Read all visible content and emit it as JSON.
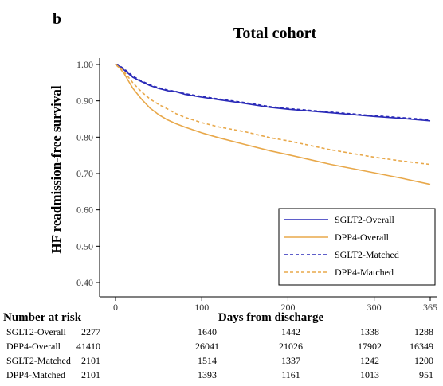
{
  "panel_label": "b",
  "chart_data": {
    "type": "line",
    "title": "Total cohort",
    "xlabel": "Days from discharge",
    "ylabel": "HF readmission-free survival",
    "xlim": [
      0,
      365
    ],
    "ylim": [
      0.4,
      1.0
    ],
    "x_ticks": [
      0,
      100,
      200,
      300,
      365
    ],
    "x_tick_labels": [
      "0",
      "100",
      "200",
      "300",
      "365"
    ],
    "y_ticks": [
      0.4,
      0.5,
      0.6,
      0.7,
      0.8,
      0.9,
      1.0
    ],
    "y_tick_labels": [
      "0.40",
      "0.50",
      "0.60",
      "0.70",
      "0.80",
      "0.90",
      "1.00"
    ],
    "grid": false,
    "legend_position": "bottom-right",
    "colors": {
      "sglt2": "#2a2ab8",
      "dpp4": "#e8a84a",
      "axis": "#000000",
      "tick_text": "#333333"
    },
    "series": [
      {
        "name": "SGLT2-Overall",
        "color": "#2a2ab8",
        "dash": "solid",
        "x": [
          0,
          5,
          10,
          15,
          20,
          30,
          40,
          50,
          60,
          70,
          80,
          100,
          120,
          150,
          180,
          200,
          250,
          300,
          330,
          365
        ],
        "y": [
          1.0,
          0.995,
          0.985,
          0.975,
          0.965,
          0.953,
          0.942,
          0.934,
          0.928,
          0.925,
          0.918,
          0.91,
          0.903,
          0.893,
          0.882,
          0.877,
          0.867,
          0.857,
          0.852,
          0.845
        ]
      },
      {
        "name": "DPP4-Overall",
        "color": "#e8a84a",
        "dash": "solid",
        "x": [
          0,
          5,
          10,
          15,
          20,
          30,
          40,
          50,
          60,
          70,
          80,
          100,
          120,
          150,
          180,
          200,
          250,
          300,
          330,
          365
        ],
        "y": [
          1.0,
          0.99,
          0.975,
          0.955,
          0.935,
          0.905,
          0.88,
          0.862,
          0.848,
          0.837,
          0.828,
          0.812,
          0.798,
          0.78,
          0.762,
          0.752,
          0.725,
          0.702,
          0.688,
          0.67
        ]
      },
      {
        "name": "SGLT2-Matched",
        "color": "#2a2ab8",
        "dash": "dashed",
        "x": [
          0,
          5,
          10,
          15,
          20,
          30,
          40,
          50,
          60,
          70,
          80,
          100,
          120,
          150,
          180,
          200,
          250,
          300,
          330,
          365
        ],
        "y": [
          1.0,
          0.996,
          0.988,
          0.978,
          0.968,
          0.955,
          0.944,
          0.936,
          0.93,
          0.926,
          0.92,
          0.912,
          0.905,
          0.895,
          0.884,
          0.879,
          0.869,
          0.859,
          0.854,
          0.848
        ]
      },
      {
        "name": "DPP4-Matched",
        "color": "#e8a84a",
        "dash": "dashed",
        "x": [
          0,
          5,
          10,
          15,
          20,
          30,
          40,
          50,
          60,
          70,
          80,
          100,
          120,
          150,
          180,
          200,
          250,
          300,
          330,
          365
        ],
        "y": [
          1.0,
          0.992,
          0.98,
          0.965,
          0.95,
          0.925,
          0.905,
          0.89,
          0.878,
          0.865,
          0.855,
          0.84,
          0.828,
          0.815,
          0.798,
          0.79,
          0.765,
          0.745,
          0.735,
          0.725
        ]
      }
    ],
    "risk_table": {
      "header": "Number at risk",
      "rows": [
        {
          "label": "SGLT2-Overall",
          "values": [
            "2277",
            "1640",
            "1442",
            "1338",
            "1288"
          ]
        },
        {
          "label": "DPP4-Overall",
          "values": [
            "41410",
            "26041",
            "21026",
            "17902",
            "16349"
          ]
        },
        {
          "label": "SGLT2-Matched",
          "values": [
            "2101",
            "1514",
            "1337",
            "1242",
            "1200"
          ]
        },
        {
          "label": "DPP4-Matched",
          "values": [
            "2101",
            "1393",
            "1161",
            "1013",
            "951"
          ]
        }
      ]
    }
  }
}
